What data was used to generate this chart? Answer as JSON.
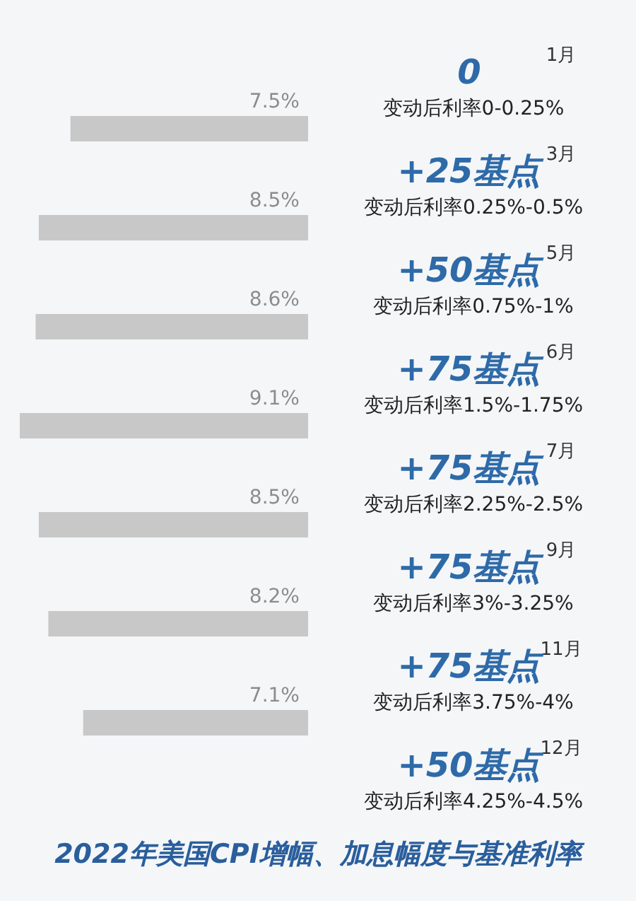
{
  "chart_data": {
    "type": "bar",
    "orientation": "horizontal",
    "title": "2022年美国CPI增幅、加息幅度与基准利率",
    "categories": [
      "1月",
      "3月",
      "5月",
      "6月",
      "7月",
      "9月",
      "11月",
      "12月"
    ],
    "values": [
      7.5,
      8.5,
      8.6,
      9.1,
      8.5,
      8.2,
      7.1,
      null
    ],
    "value_labels": [
      "7.5%",
      "8.5%",
      "8.6%",
      "9.1%",
      "8.5%",
      "8.2%",
      "7.1%",
      null
    ],
    "color": "#c8c8c8",
    "annotations": [
      "0",
      "变动后利率0-0.25%",
      "+25基点",
      "变动后利率0.25%-0.5%",
      "+50基点",
      "变动后利率0.75%-1%",
      "+75基点",
      "变动后利率1.5%-1.75%",
      "+75基点",
      "变动后利率2.25%-2.5%",
      "+75基点",
      "变动后利率3%-3.25%",
      "+75基点",
      "变动后利率3.75%-4%",
      "+50基点",
      "变动后利率4.25%-4.5%"
    ]
  }
}
